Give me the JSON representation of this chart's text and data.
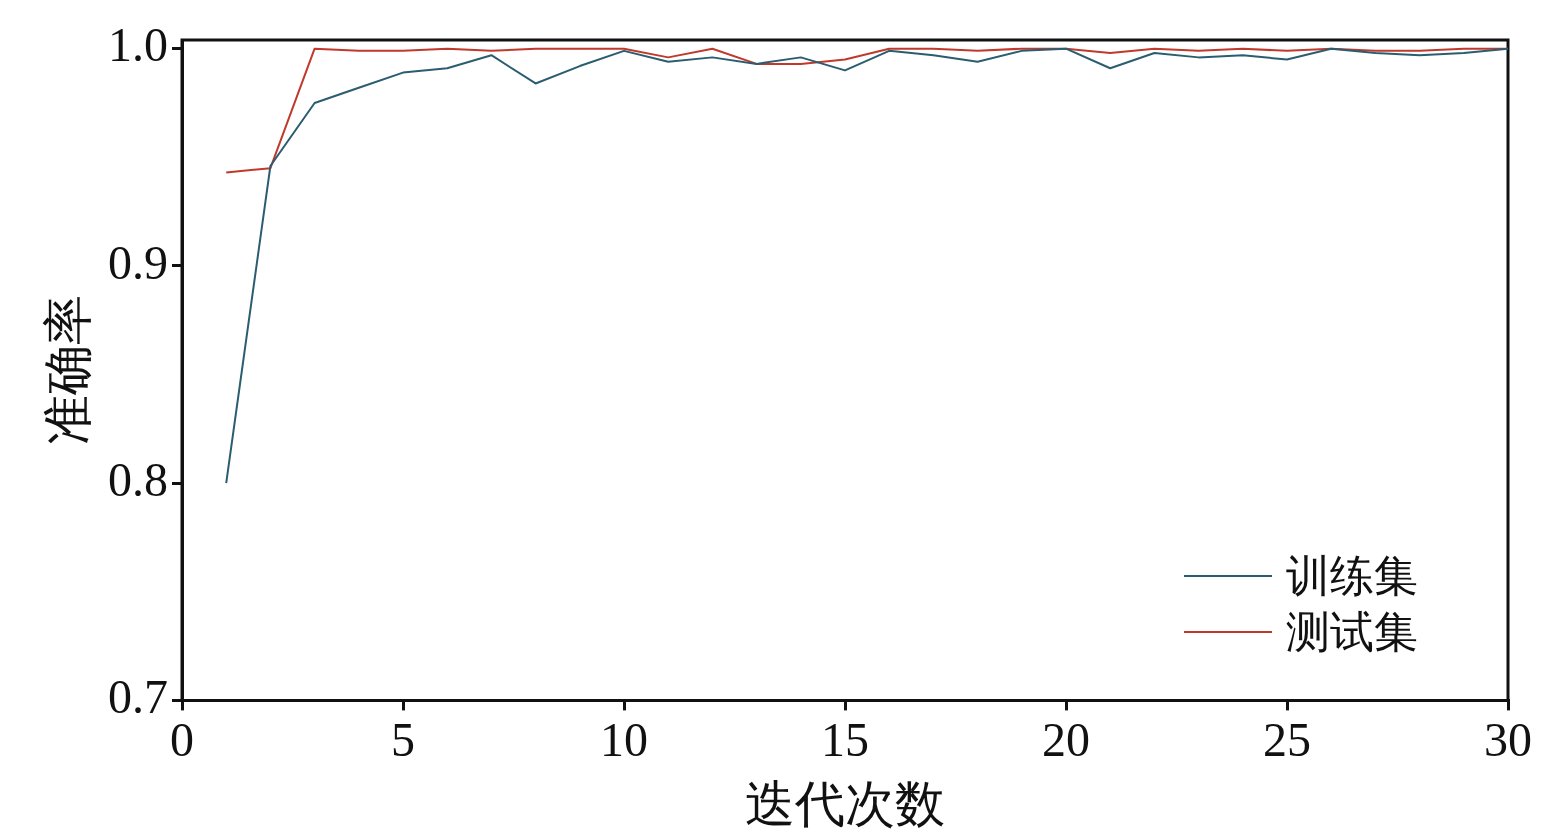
{
  "chart_data": {
    "type": "line",
    "xlabel": "迭代次数",
    "ylabel": "准确率",
    "x": [
      1,
      2,
      3,
      4,
      5,
      6,
      7,
      8,
      9,
      10,
      11,
      12,
      13,
      14,
      15,
      16,
      17,
      18,
      19,
      20,
      21,
      22,
      23,
      24,
      25,
      26,
      27,
      28,
      29,
      30
    ],
    "series": [
      {
        "name": "训练集",
        "color": "#2b5d70",
        "values": [
          0.8,
          0.946,
          0.975,
          0.982,
          0.989,
          0.991,
          0.997,
          0.984,
          0.992,
          0.999,
          0.994,
          0.996,
          0.993,
          0.996,
          0.99,
          0.999,
          0.997,
          0.994,
          0.999,
          1.0,
          0.991,
          0.998,
          0.996,
          0.997,
          0.995,
          1.0,
          0.998,
          0.997,
          0.998,
          1.0
        ]
      },
      {
        "name": "测试集",
        "color": "#c0392b",
        "values": [
          0.943,
          0.945,
          1.0,
          0.999,
          0.999,
          1.0,
          0.999,
          1.0,
          1.0,
          1.0,
          0.996,
          1.0,
          0.993,
          0.993,
          0.995,
          1.0,
          1.0,
          0.999,
          1.0,
          1.0,
          0.998,
          1.0,
          0.999,
          1.0,
          0.999,
          1.0,
          0.999,
          0.999,
          1.0,
          1.0
        ]
      }
    ],
    "xlim": [
      0,
      30
    ],
    "xticks": [
      0,
      5,
      10,
      15,
      20,
      25,
      30
    ],
    "ylim": [
      0.7,
      1.004
    ],
    "yticks": [
      {
        "value": 0.7,
        "label": "0.7"
      },
      {
        "value": 0.8,
        "label": "0.8"
      },
      {
        "value": 0.9,
        "label": "0.9"
      },
      {
        "value": 1.0,
        "label": "1.0"
      }
    ],
    "legend": "bottom right",
    "marker": "none",
    "line_style": "solid"
  }
}
